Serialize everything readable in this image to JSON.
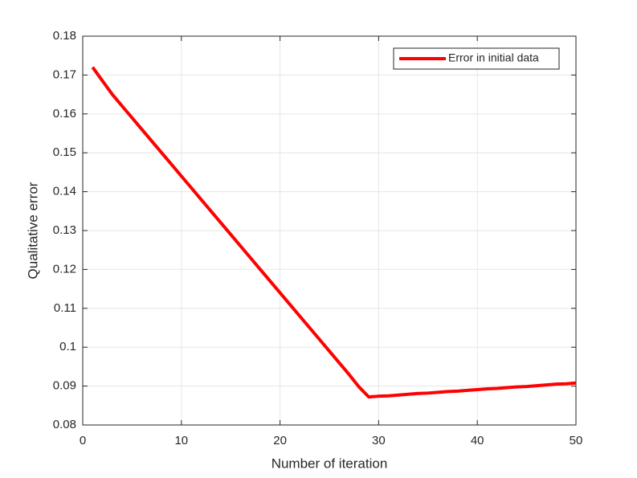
{
  "chart_data": {
    "type": "line",
    "xlabel": "Number of iteration",
    "ylabel": "Qualitative error",
    "x": [
      1,
      2,
      3,
      4,
      5,
      6,
      7,
      8,
      9,
      10,
      11,
      12,
      13,
      14,
      15,
      16,
      17,
      18,
      19,
      20,
      21,
      22,
      23,
      24,
      25,
      26,
      27,
      28,
      29,
      30,
      31,
      32,
      33,
      34,
      35,
      36,
      37,
      38,
      39,
      40,
      41,
      42,
      43,
      44,
      45,
      46,
      47,
      48,
      49,
      50
    ],
    "series": [
      {
        "name": "Error in initial data",
        "color": "#ff0000",
        "values": [
          0.172,
          0.1685,
          0.165,
          0.162,
          0.159,
          0.156,
          0.153,
          0.15,
          0.147,
          0.144,
          0.141,
          0.138,
          0.135,
          0.132,
          0.129,
          0.126,
          0.123,
          0.12,
          0.117,
          0.114,
          0.111,
          0.108,
          0.105,
          0.102,
          0.099,
          0.096,
          0.093,
          0.0898,
          0.0872,
          0.0874,
          0.0875,
          0.0877,
          0.0879,
          0.0881,
          0.0882,
          0.0884,
          0.0886,
          0.0887,
          0.0889,
          0.0891,
          0.0893,
          0.0894,
          0.0896,
          0.0898,
          0.0899,
          0.0901,
          0.0903,
          0.0905,
          0.0906,
          0.0908
        ]
      }
    ],
    "xlim": [
      0,
      50
    ],
    "xticks": [
      0,
      10,
      20,
      30,
      40,
      50
    ],
    "ylim": [
      0.08,
      0.18
    ],
    "yticks": [
      0.08,
      0.09,
      0.1,
      0.11,
      0.12,
      0.13,
      0.14,
      0.15,
      0.16,
      0.17,
      0.18
    ],
    "grid": true,
    "legend": "northeast"
  }
}
